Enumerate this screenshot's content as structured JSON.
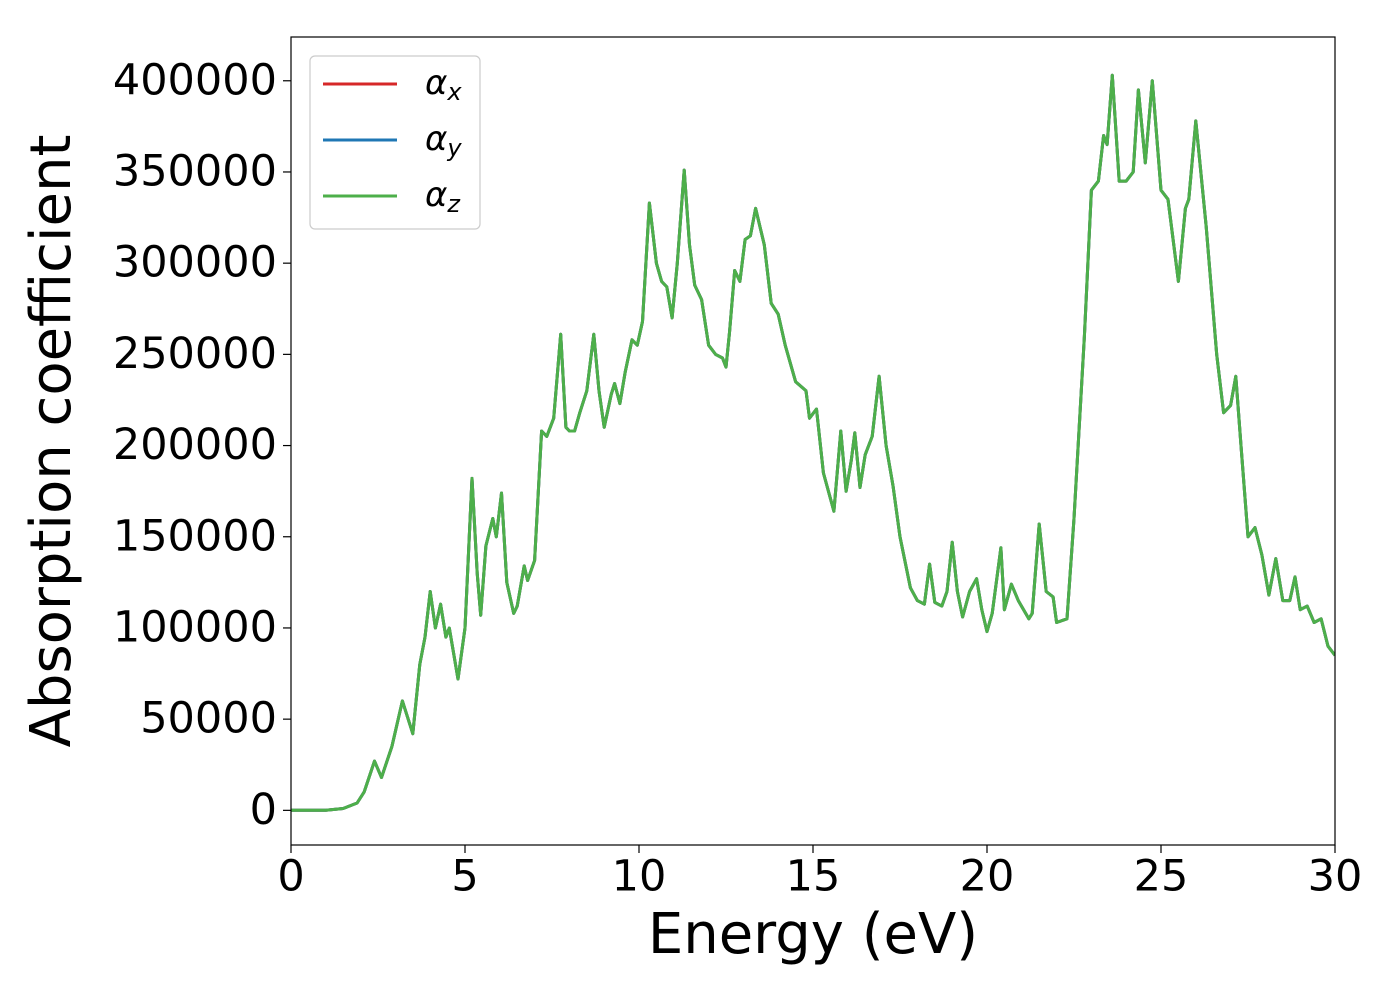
{
  "chart_data": {
    "type": "line",
    "x_label": "Energy (eV)",
    "y_label": "Absorption coefficient",
    "x": [
      0,
      1,
      1.5,
      1.9,
      2.1,
      2.4,
      2.6,
      2.9,
      3.2,
      3.5,
      3.7,
      3.85,
      4.0,
      4.15,
      4.3,
      4.45,
      4.55,
      4.8,
      5.0,
      5.2,
      5.35,
      5.45,
      5.6,
      5.8,
      5.9,
      6.05,
      6.2,
      6.4,
      6.5,
      6.7,
      6.8,
      7.0,
      7.2,
      7.35,
      7.55,
      7.75,
      7.9,
      8.0,
      8.15,
      8.3,
      8.5,
      8.7,
      8.85,
      9.0,
      9.2,
      9.3,
      9.45,
      9.6,
      9.8,
      9.95,
      10.1,
      10.3,
      10.5,
      10.65,
      10.8,
      10.95,
      11.1,
      11.3,
      11.45,
      11.6,
      11.8,
      12.0,
      12.2,
      12.4,
      12.5,
      12.6,
      12.75,
      12.9,
      13.05,
      13.2,
      13.35,
      13.6,
      13.8,
      14.0,
      14.2,
      14.5,
      14.8,
      14.9,
      15.1,
      15.3,
      15.6,
      15.8,
      15.95,
      16.1,
      16.2,
      16.35,
      16.5,
      16.7,
      16.9,
      17.1,
      17.3,
      17.5,
      17.8,
      18.0,
      18.2,
      18.35,
      18.5,
      18.7,
      18.85,
      19.0,
      19.15,
      19.3,
      19.5,
      19.7,
      19.85,
      20.0,
      20.15,
      20.4,
      20.5,
      20.7,
      20.9,
      21.2,
      21.3,
      21.5,
      21.7,
      21.9,
      22.0,
      22.3,
      22.5,
      22.8,
      23.0,
      23.2,
      23.35,
      23.45,
      23.6,
      23.8,
      24.0,
      24.2,
      24.35,
      24.55,
      24.75,
      25.0,
      25.2,
      25.5,
      25.7,
      25.8,
      26.0,
      26.3,
      26.6,
      26.8,
      27.0,
      27.15,
      27.3,
      27.5,
      27.7,
      27.9,
      28.1,
      28.3,
      28.5,
      28.7,
      28.85,
      29.0,
      29.2,
      29.4,
      29.6,
      29.8,
      30.0
    ],
    "series": [
      {
        "name": "αx",
        "color": "#d62728",
        "values": [
          0,
          0,
          1000,
          4000,
          10000,
          27000,
          18000,
          35000,
          60000,
          42000,
          80000,
          95000,
          120000,
          100000,
          113000,
          95000,
          100000,
          72000,
          100000,
          182000,
          130000,
          107000,
          145000,
          160000,
          150000,
          174000,
          125000,
          108000,
          112000,
          134000,
          126000,
          137000,
          208000,
          205000,
          215000,
          261000,
          210000,
          208000,
          208000,
          218000,
          230000,
          261000,
          230000,
          210000,
          228000,
          234000,
          223000,
          240000,
          258000,
          255000,
          268000,
          333000,
          300000,
          290000,
          287000,
          270000,
          300000,
          351000,
          310000,
          288000,
          280000,
          255000,
          250000,
          248000,
          243000,
          262000,
          296000,
          290000,
          313000,
          315000,
          330000,
          310000,
          278000,
          272000,
          255000,
          235000,
          230000,
          215000,
          220000,
          185000,
          164000,
          208000,
          175000,
          192000,
          207000,
          177000,
          195000,
          205000,
          238000,
          200000,
          178000,
          150000,
          122000,
          115000,
          113000,
          135000,
          114000,
          112000,
          120000,
          147000,
          120000,
          106000,
          120000,
          127000,
          110000,
          98000,
          108000,
          144000,
          110000,
          124000,
          115000,
          105000,
          108000,
          157000,
          120000,
          117000,
          103000,
          105000,
          160000,
          260000,
          340000,
          345000,
          370000,
          365000,
          403000,
          345000,
          345000,
          350000,
          395000,
          355000,
          400000,
          340000,
          335000,
          290000,
          330000,
          335000,
          378000,
          320000,
          250000,
          218000,
          222000,
          238000,
          200000,
          150000,
          155000,
          140000,
          118000,
          138000,
          115000,
          115000,
          128000,
          110000,
          112000,
          103000,
          105000,
          90000,
          85000
        ]
      },
      {
        "name": "αy",
        "color": "#1f77b4",
        "values": [
          0,
          0,
          1000,
          4000,
          10000,
          27000,
          18000,
          35000,
          60000,
          42000,
          80000,
          95000,
          120000,
          100000,
          113000,
          95000,
          100000,
          72000,
          100000,
          182000,
          130000,
          107000,
          145000,
          160000,
          150000,
          174000,
          125000,
          108000,
          112000,
          134000,
          126000,
          137000,
          208000,
          205000,
          215000,
          261000,
          210000,
          208000,
          208000,
          218000,
          230000,
          261000,
          230000,
          210000,
          228000,
          234000,
          223000,
          240000,
          258000,
          255000,
          268000,
          333000,
          300000,
          290000,
          287000,
          270000,
          300000,
          351000,
          310000,
          288000,
          280000,
          255000,
          250000,
          248000,
          243000,
          262000,
          296000,
          290000,
          313000,
          315000,
          330000,
          310000,
          278000,
          272000,
          255000,
          235000,
          230000,
          215000,
          220000,
          185000,
          164000,
          208000,
          175000,
          192000,
          207000,
          177000,
          195000,
          205000,
          238000,
          200000,
          178000,
          150000,
          122000,
          115000,
          113000,
          135000,
          114000,
          112000,
          120000,
          147000,
          120000,
          106000,
          120000,
          127000,
          110000,
          98000,
          108000,
          144000,
          110000,
          124000,
          115000,
          105000,
          108000,
          157000,
          120000,
          117000,
          103000,
          105000,
          160000,
          260000,
          340000,
          345000,
          370000,
          365000,
          403000,
          345000,
          345000,
          350000,
          395000,
          355000,
          400000,
          340000,
          335000,
          290000,
          330000,
          335000,
          378000,
          320000,
          250000,
          218000,
          222000,
          238000,
          200000,
          150000,
          155000,
          140000,
          118000,
          138000,
          115000,
          115000,
          128000,
          110000,
          112000,
          103000,
          105000,
          90000,
          85000
        ]
      },
      {
        "name": "αz",
        "color": "#4daf4a",
        "values": [
          0,
          0,
          1000,
          4000,
          10000,
          27000,
          18000,
          35000,
          60000,
          42000,
          80000,
          95000,
          120000,
          100000,
          113000,
          95000,
          100000,
          72000,
          100000,
          182000,
          130000,
          107000,
          145000,
          160000,
          150000,
          174000,
          125000,
          108000,
          112000,
          134000,
          126000,
          137000,
          208000,
          205000,
          215000,
          261000,
          210000,
          208000,
          208000,
          218000,
          230000,
          261000,
          230000,
          210000,
          228000,
          234000,
          223000,
          240000,
          258000,
          255000,
          268000,
          333000,
          300000,
          290000,
          287000,
          270000,
          300000,
          351000,
          310000,
          288000,
          280000,
          255000,
          250000,
          248000,
          243000,
          262000,
          296000,
          290000,
          313000,
          315000,
          330000,
          310000,
          278000,
          272000,
          255000,
          235000,
          230000,
          215000,
          220000,
          185000,
          164000,
          208000,
          175000,
          192000,
          207000,
          177000,
          195000,
          205000,
          238000,
          200000,
          178000,
          150000,
          122000,
          115000,
          113000,
          135000,
          114000,
          112000,
          120000,
          147000,
          120000,
          106000,
          120000,
          127000,
          110000,
          98000,
          108000,
          144000,
          110000,
          124000,
          115000,
          105000,
          108000,
          157000,
          120000,
          117000,
          103000,
          105000,
          160000,
          260000,
          340000,
          345000,
          370000,
          365000,
          403000,
          345000,
          345000,
          350000,
          395000,
          355000,
          400000,
          340000,
          335000,
          290000,
          330000,
          335000,
          378000,
          320000,
          250000,
          218000,
          222000,
          238000,
          200000,
          150000,
          155000,
          140000,
          118000,
          138000,
          115000,
          115000,
          128000,
          110000,
          112000,
          103000,
          105000,
          90000,
          85000
        ]
      }
    ],
    "xlim": [
      0,
      30
    ],
    "xticks": [
      0,
      5,
      10,
      15,
      20,
      25,
      30
    ],
    "ylim": [
      -19000,
      424000
    ],
    "yticks": [
      0,
      50000,
      100000,
      150000,
      200000,
      250000,
      300000,
      350000,
      400000
    ],
    "grid": false,
    "legend": "upper left"
  }
}
